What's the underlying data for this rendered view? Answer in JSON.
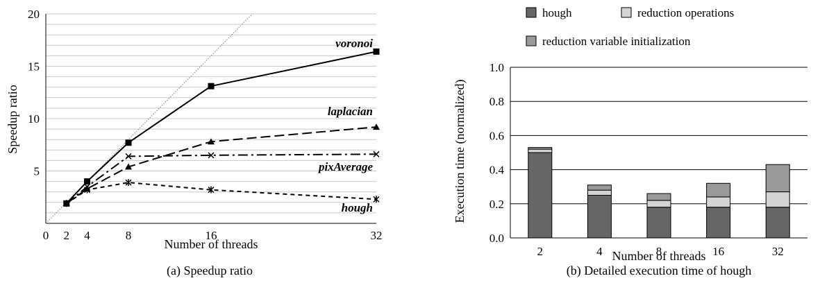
{
  "chart_data": [
    {
      "type": "line",
      "caption": "(a) Speedup ratio",
      "xlabel": "Number of threads",
      "ylabel": "Speedup ratio",
      "xlim": [
        0,
        32
      ],
      "ylim": [
        0,
        20
      ],
      "x_ticks": [
        0,
        2,
        4,
        8,
        16,
        32
      ],
      "y_ticks": [
        5,
        10,
        15,
        20
      ],
      "grid": "horizontal",
      "reference_line": "ideal",
      "series": [
        {
          "name": "voronoi",
          "x": [
            2,
            4,
            8,
            16,
            32
          ],
          "y": [
            1.9,
            4.0,
            7.7,
            13.1,
            16.4
          ]
        },
        {
          "name": "laplacian",
          "x": [
            2,
            4,
            8,
            16,
            32
          ],
          "y": [
            1.9,
            3.3,
            5.4,
            7.8,
            9.2
          ]
        },
        {
          "name": "pixAverage",
          "x": [
            2,
            4,
            8,
            16,
            32
          ],
          "y": [
            1.9,
            3.5,
            6.4,
            6.5,
            6.6
          ]
        },
        {
          "name": "hough",
          "x": [
            2,
            4,
            8,
            16,
            32
          ],
          "y": [
            1.9,
            3.2,
            3.9,
            3.2,
            2.3
          ]
        }
      ]
    },
    {
      "type": "bar",
      "stacked": true,
      "caption": "(b) Detailed execution time of hough",
      "xlabel": "Number of threads",
      "ylabel": "Execution time (normalized)",
      "categories": [
        "2",
        "4",
        "8",
        "16",
        "32"
      ],
      "ylim": [
        0,
        1.0
      ],
      "y_ticks": [
        "0.0",
        "0.2",
        "0.4",
        "0.6",
        "0.8",
        "1.0"
      ],
      "grid": "horizontal",
      "legend_position": "top",
      "series": [
        {
          "name": "hough",
          "color": "#666666",
          "values": [
            0.5,
            0.25,
            0.18,
            0.18,
            0.18
          ]
        },
        {
          "name": "reduction operations",
          "color": "#d4d4d4",
          "values": [
            0.02,
            0.03,
            0.04,
            0.06,
            0.09
          ]
        },
        {
          "name": "reduction variable initialization",
          "color": "#999999",
          "values": [
            0.01,
            0.03,
            0.04,
            0.08,
            0.16
          ]
        }
      ]
    }
  ]
}
